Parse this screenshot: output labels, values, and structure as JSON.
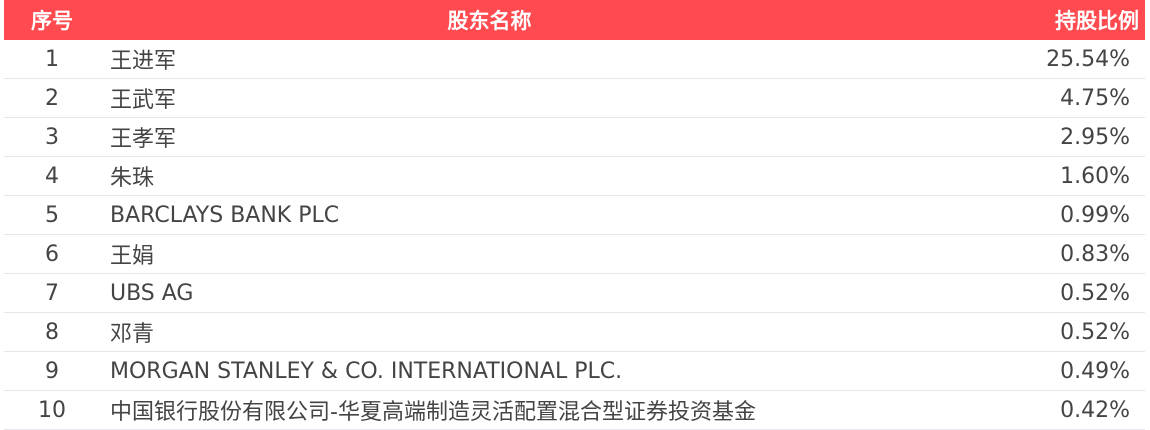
{
  "header": {
    "index": "序号",
    "name": "股东名称",
    "ratio": "持股比例"
  },
  "rows": [
    {
      "index": "1",
      "name": "王进军",
      "ratio": "25.54%"
    },
    {
      "index": "2",
      "name": "王武军",
      "ratio": "4.75%"
    },
    {
      "index": "3",
      "name": "王孝军",
      "ratio": "2.95%"
    },
    {
      "index": "4",
      "name": "朱珠",
      "ratio": "1.60%"
    },
    {
      "index": "5",
      "name": "BARCLAYS BANK PLC",
      "ratio": "0.99%"
    },
    {
      "index": "6",
      "name": "王娟",
      "ratio": "0.83%"
    },
    {
      "index": "7",
      "name": "UBS AG",
      "ratio": "0.52%"
    },
    {
      "index": "8",
      "name": "邓青",
      "ratio": "0.52%"
    },
    {
      "index": "9",
      "name": "MORGAN STANLEY & CO. INTERNATIONAL PLC.",
      "ratio": "0.49%"
    },
    {
      "index": "10",
      "name": "中国银行股份有限公司-华夏高端制造灵活配置混合型证券投资基金",
      "ratio": "0.42%"
    }
  ],
  "colors": {
    "header_bg": "#FF4A4F",
    "text": "#444444"
  }
}
